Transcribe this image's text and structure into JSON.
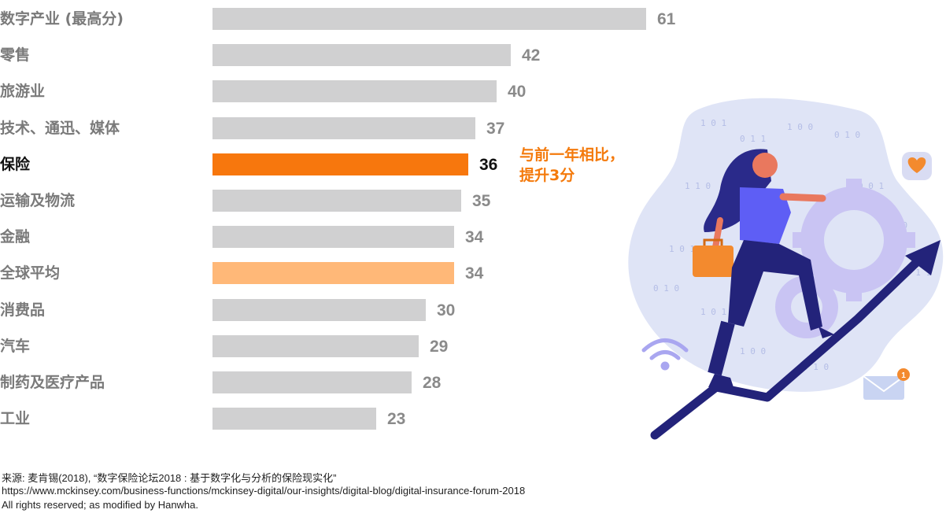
{
  "chart_data": {
    "type": "bar",
    "orientation": "horizontal",
    "categories": [
      "数字产业 (最高分)",
      "零售",
      "旅游业",
      "技术、通迅、媒体",
      "保险",
      "运输及物流",
      "金融",
      "全球平均",
      "消费品",
      "汽车",
      "制药及医疗产品",
      "工业"
    ],
    "values": [
      61,
      42,
      40,
      37,
      36,
      35,
      34,
      34,
      30,
      29,
      28,
      23
    ],
    "highlight": {
      "保险": "#f7770d",
      "全球平均": "#ffb878"
    },
    "default_color": "#d0d0d1",
    "annotation": [
      "与前一年相比，",
      "提升3分"
    ],
    "xlim": [
      0,
      61
    ]
  },
  "colors": {
    "accent": "#f47a0c",
    "bar_default": "#d0d0d1",
    "bar_highlight": "#f7770d",
    "bar_average": "#ffb878",
    "illustration_blob": "#dfe4f6",
    "figure_navy": "#23237a"
  },
  "footnotes": [
    "来源: 麦肯锡(2018), “数字保险论坛2018 : 基于数字化与分析的保险现实化”",
    "https://www.mckinsey.com/business-functions/mckinsey-digital/our-insights/digital-blog/digital-insurance-forum-2018",
    "All rights reserved; as modified by Hanwha."
  ],
  "illustration": {
    "icons": [
      "heart-icon",
      "wifi-icon",
      "mail-icon",
      "gear-icon",
      "growth-arrow-icon",
      "briefcase-icon"
    ],
    "badge_count": "1"
  }
}
